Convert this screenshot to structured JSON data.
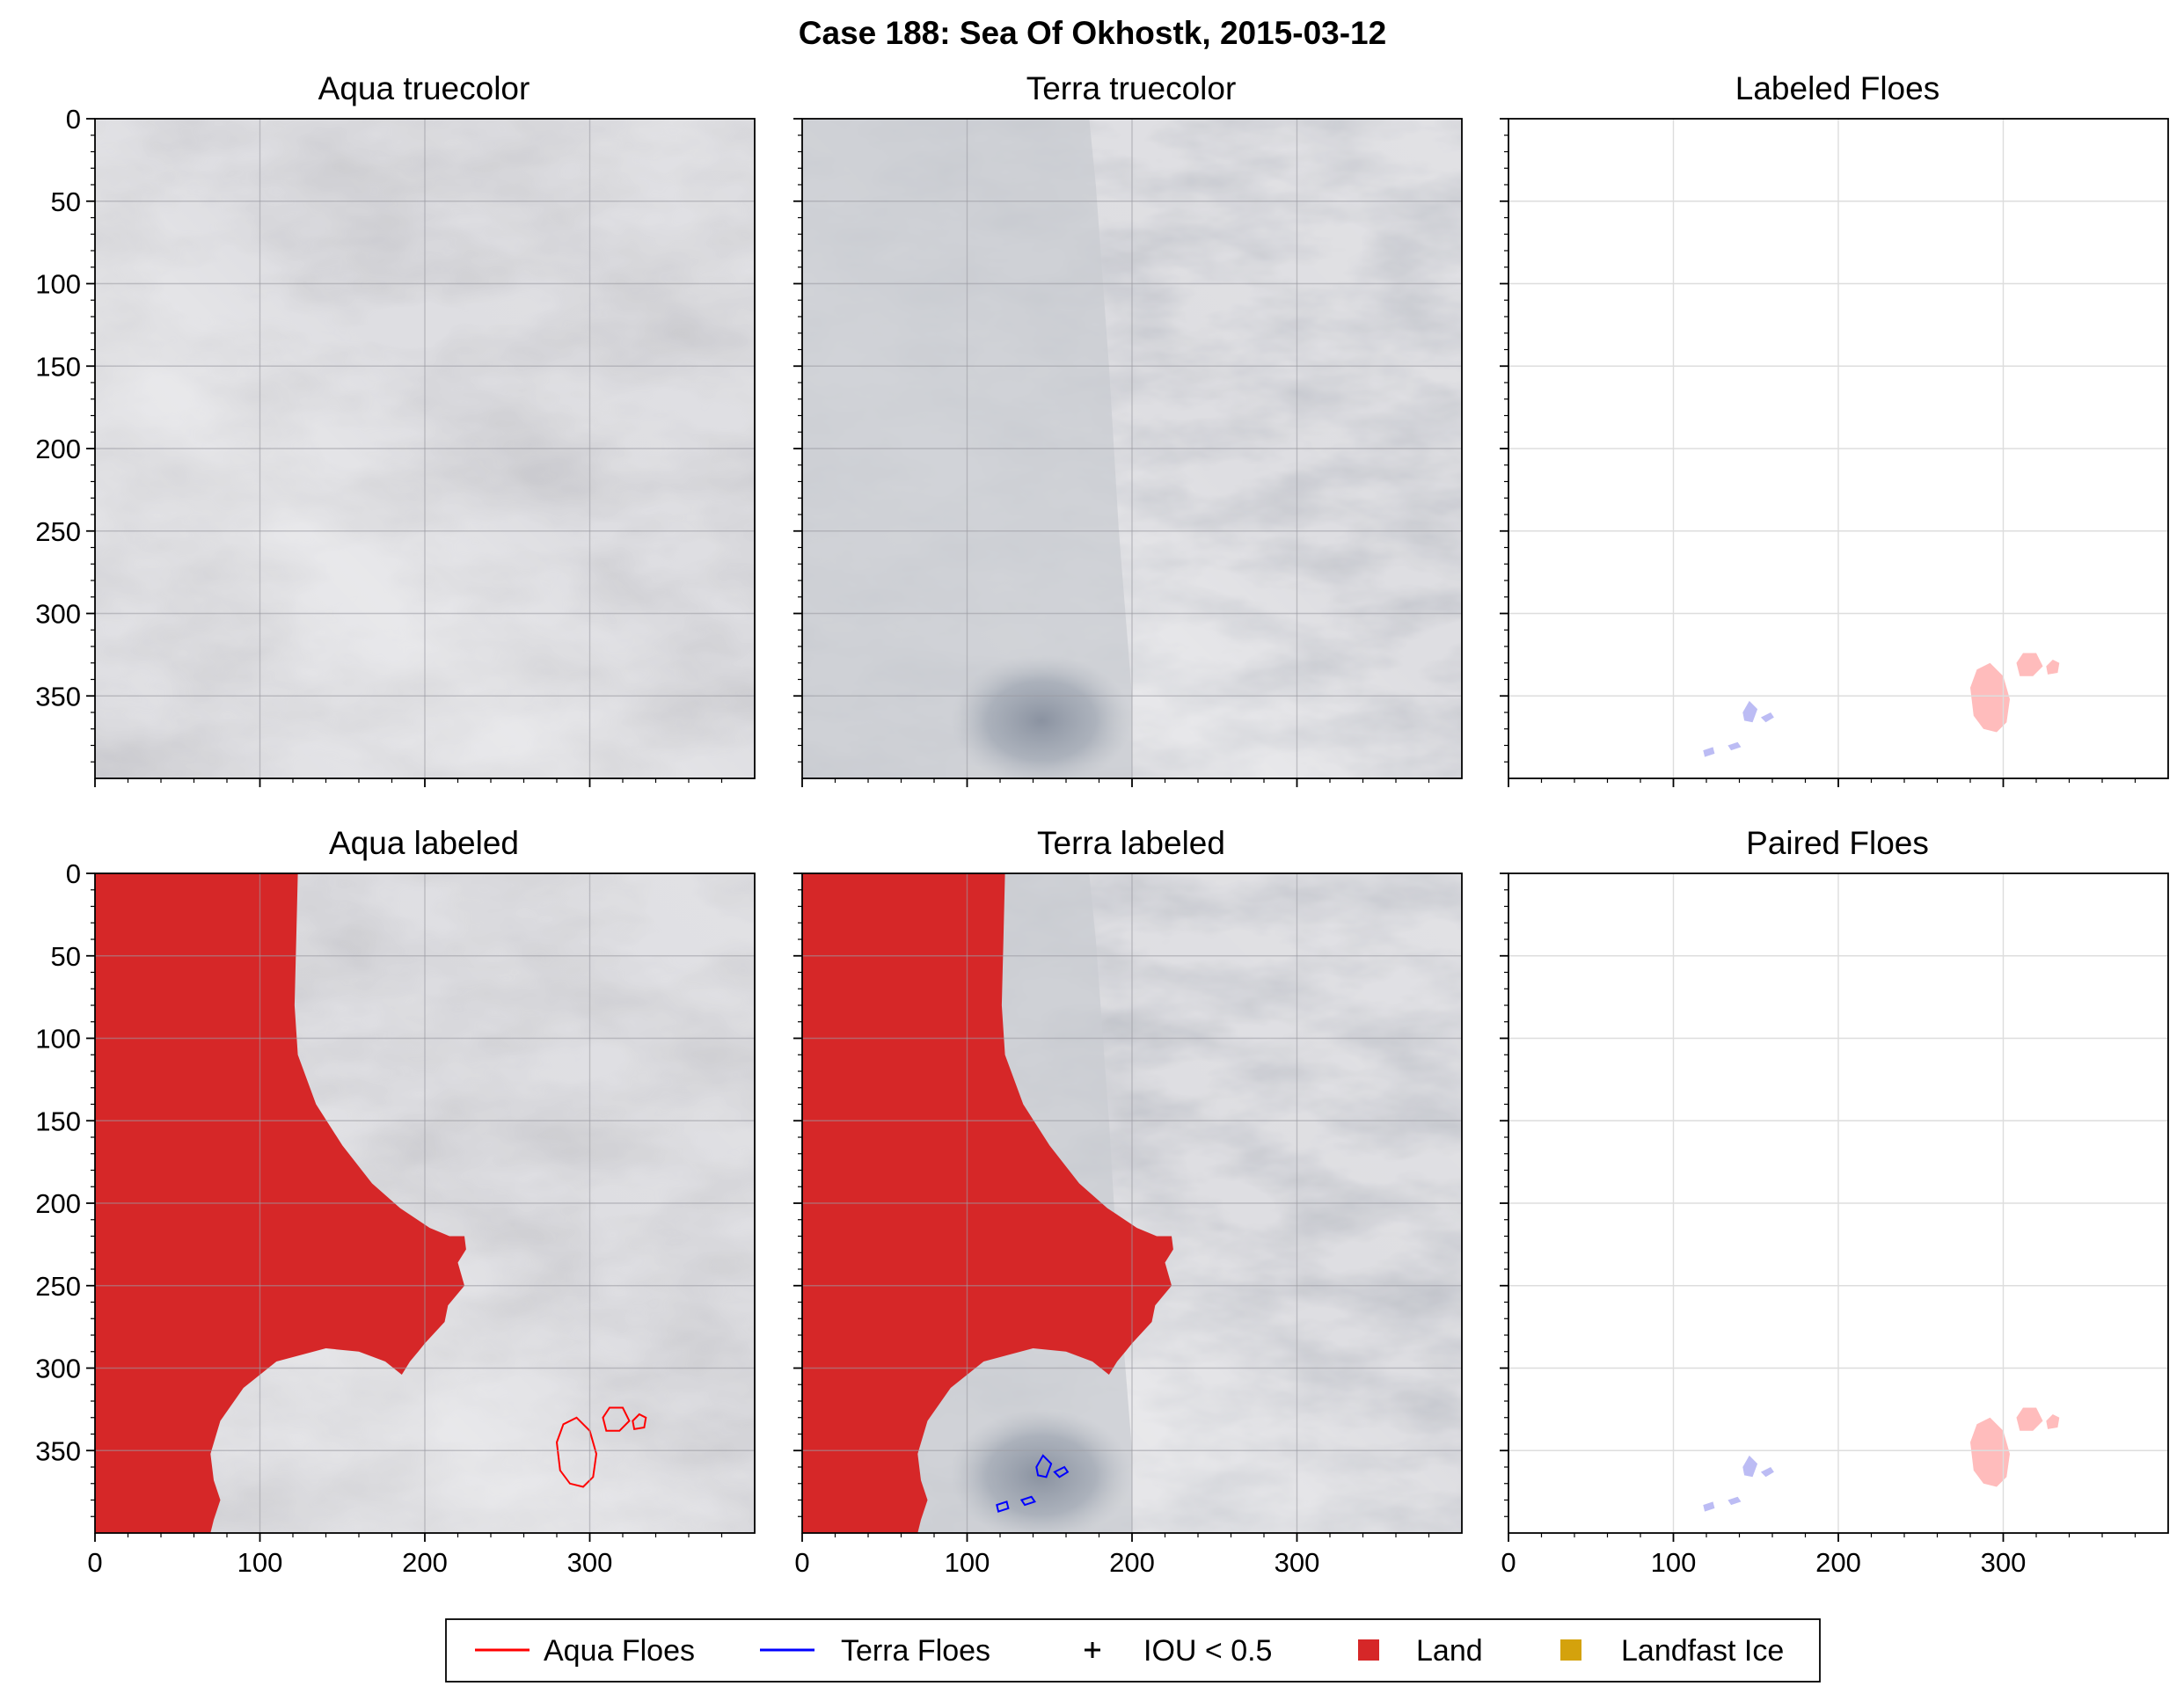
{
  "figure": {
    "title": "Case 188: Sea Of Okhostk, 2015-03-12"
  },
  "panels": [
    {
      "title": "Aqua truecolor",
      "kind": "truecolor_aqua"
    },
    {
      "title": "Terra truecolor",
      "kind": "truecolor_terra"
    },
    {
      "title": "Labeled Floes",
      "kind": "floes"
    },
    {
      "title": "Aqua labeled",
      "kind": "labeled_aqua"
    },
    {
      "title": "Terra labeled",
      "kind": "labeled_terra"
    },
    {
      "title": "Paired Floes",
      "kind": "floes"
    }
  ],
  "axes": {
    "y_ticks": [
      "0",
      "50",
      "100",
      "150",
      "200",
      "250",
      "300",
      "350"
    ],
    "x_ticks": [
      "0",
      "100",
      "200",
      "300"
    ],
    "range": [
      0,
      400
    ]
  },
  "legend": {
    "items": [
      {
        "label": "Aqua Floes",
        "kind": "line",
        "color": "#ff0000"
      },
      {
        "label": "Terra Floes",
        "kind": "line",
        "color": "#0000ff"
      },
      {
        "label": "IOU < 0.5",
        "kind": "plus",
        "color": "#000000"
      },
      {
        "label": "Land",
        "kind": "square",
        "color": "#d62728"
      },
      {
        "label": "Landfast Ice",
        "kind": "square",
        "color": "#d4a20c"
      }
    ]
  },
  "colors": {
    "land": "#d62728",
    "aqua_floe": "#ff0000",
    "terra_floe": "#0000ff",
    "aqua_fill": "#ffbcbc",
    "terra_fill": "#bcbcf4",
    "cloud": "#dcdce0"
  }
}
